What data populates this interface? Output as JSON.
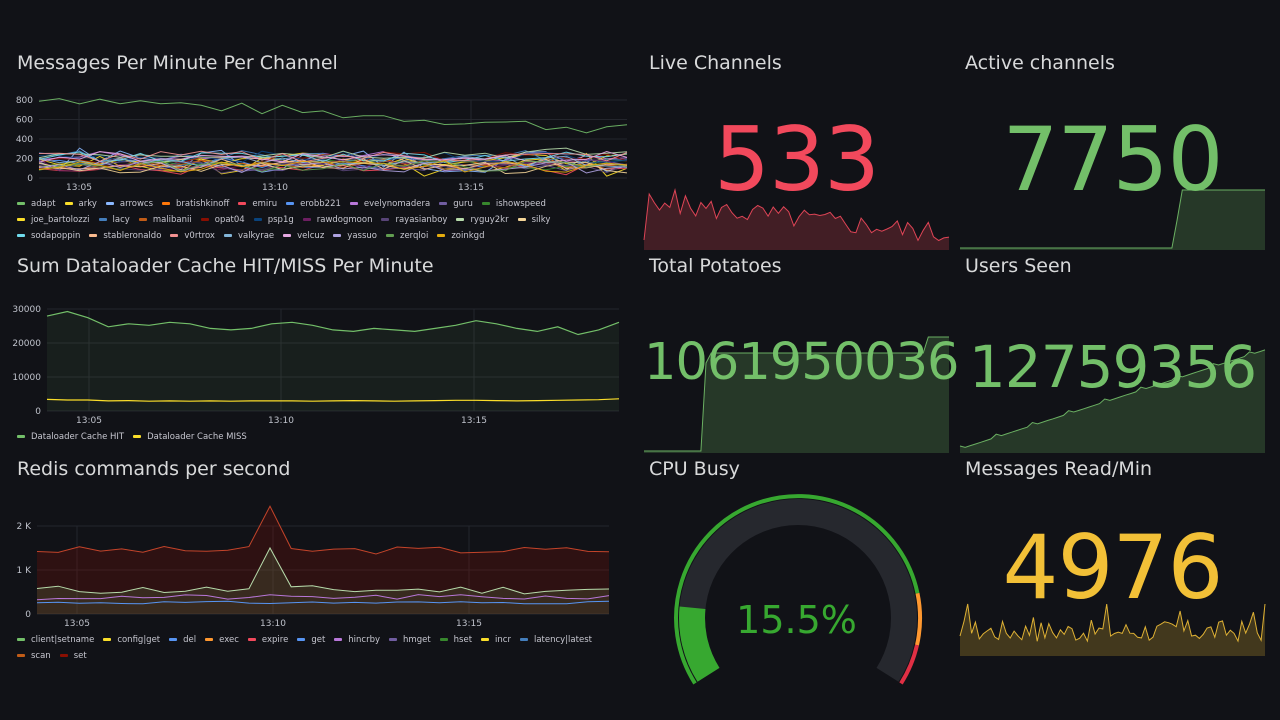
{
  "panels": {
    "messages_per_minute": {
      "title": "Messages Per Minute Per Channel",
      "y_ticks": [
        "800",
        "600",
        "400",
        "200",
        "0"
      ],
      "x_ticks": [
        "13:05",
        "13:10",
        "13:15"
      ],
      "legend": [
        {
          "name": "adapt",
          "color": "#73bf69"
        },
        {
          "name": "arky",
          "color": "#fade2a"
        },
        {
          "name": "arrowcs",
          "color": "#8ab8ff"
        },
        {
          "name": "bratishkinoff",
          "color": "#ff780a"
        },
        {
          "name": "emiru",
          "color": "#f2495c"
        },
        {
          "name": "erobb221",
          "color": "#5794f2"
        },
        {
          "name": "evelynomadera",
          "color": "#b877d9"
        },
        {
          "name": "guru",
          "color": "#705da0"
        },
        {
          "name": "ishowspeed",
          "color": "#37872d"
        },
        {
          "name": "joe_bartolozzi",
          "color": "#fade2a"
        },
        {
          "name": "lacy",
          "color": "#447ebc"
        },
        {
          "name": "malibanii",
          "color": "#c15c17"
        },
        {
          "name": "opat04",
          "color": "#890f02"
        },
        {
          "name": "psp1g",
          "color": "#0a437c"
        },
        {
          "name": "rawdogmoon",
          "color": "#6d1f62"
        },
        {
          "name": "rayasianboy",
          "color": "#584477"
        },
        {
          "name": "ryguy2kr",
          "color": "#b7dbab"
        },
        {
          "name": "silky",
          "color": "#f4d598"
        },
        {
          "name": "sodapoppin",
          "color": "#70dbed"
        },
        {
          "name": "stableronaldo",
          "color": "#f9ba8f"
        },
        {
          "name": "v0rtrox",
          "color": "#f29191"
        },
        {
          "name": "valkyrae",
          "color": "#82b5d8"
        },
        {
          "name": "velcuz",
          "color": "#e5a8e2"
        },
        {
          "name": "yassuo",
          "color": "#aea2e0"
        },
        {
          "name": "zerqloi",
          "color": "#629e51"
        },
        {
          "name": "zoinkgd",
          "color": "#e5ac0e"
        }
      ]
    },
    "dataloader_cache": {
      "title": "Sum Dataloader Cache HIT/MISS Per Minute",
      "y_ticks": [
        "30000",
        "20000",
        "10000",
        "0"
      ],
      "x_ticks": [
        "13:05",
        "13:10",
        "13:15"
      ],
      "legend": [
        {
          "name": "Dataloader Cache HIT",
          "color": "#73bf69"
        },
        {
          "name": "Dataloader Cache MISS",
          "color": "#fade2a"
        }
      ]
    },
    "redis_commands": {
      "title": "Redis commands per second",
      "y_ticks": [
        "2 K",
        "1 K",
        "0"
      ],
      "x_ticks": [
        "13:05",
        "13:10",
        "13:15"
      ],
      "legend": [
        {
          "name": "client|setname",
          "color": "#73bf69"
        },
        {
          "name": "config|get",
          "color": "#fade2a"
        },
        {
          "name": "del",
          "color": "#5794f2"
        },
        {
          "name": "exec",
          "color": "#ff9830"
        },
        {
          "name": "expire",
          "color": "#f2495c"
        },
        {
          "name": "get",
          "color": "#5794f2"
        },
        {
          "name": "hincrby",
          "color": "#b877d9"
        },
        {
          "name": "hmget",
          "color": "#705da0"
        },
        {
          "name": "hset",
          "color": "#37872d"
        },
        {
          "name": "incr",
          "color": "#fade2a"
        },
        {
          "name": "latency|latest",
          "color": "#447ebc"
        },
        {
          "name": "scan",
          "color": "#c15c17"
        },
        {
          "name": "set",
          "color": "#890f02"
        }
      ]
    },
    "live_channels": {
      "title": "Live Channels",
      "value": "533",
      "color": "#f2495c"
    },
    "active_channels": {
      "title": "Active channels",
      "value": "7750",
      "color": "#73bf69"
    },
    "total_potatoes": {
      "title": "Total Potatoes",
      "value": "1061950036",
      "color": "#73bf69"
    },
    "users_seen": {
      "title": "Users Seen",
      "value": "12759356",
      "color": "#73bf69"
    },
    "cpu_busy": {
      "title": "CPU Busy",
      "value": "15.5%",
      "fraction": 0.155,
      "color": "#37a830"
    },
    "messages_read": {
      "title": "Messages Read/Min",
      "value": "4976",
      "color": "#f2c037"
    }
  }
}
